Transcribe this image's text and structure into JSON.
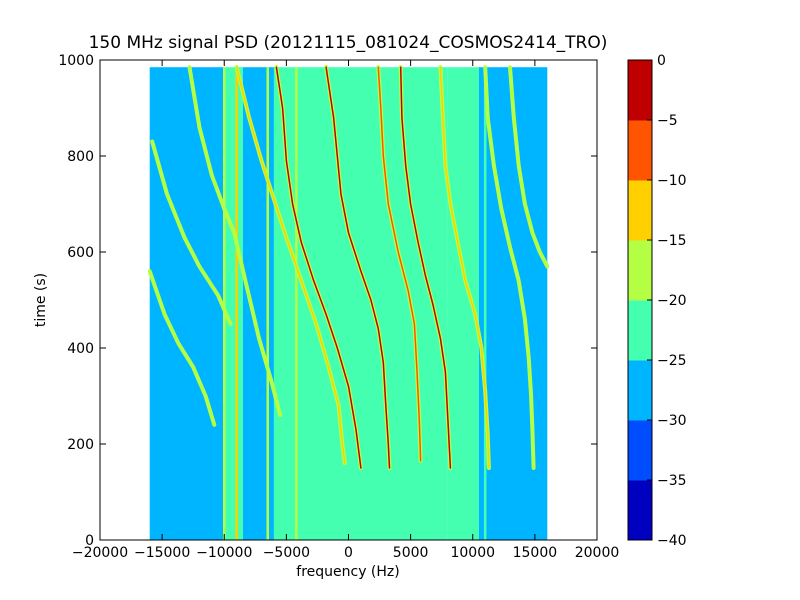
{
  "chart_data": {
    "type": "heatmap",
    "title": "150 MHz signal PSD (20121115_081024_COSMOS2414_TRO)",
    "xlabel": "frequency (Hz)",
    "ylabel": "time (s)",
    "xlim": [
      -20000,
      20000
    ],
    "ylim": [
      0,
      1000
    ],
    "x_ticks": [
      -20000,
      -15000,
      -10000,
      -5000,
      0,
      5000,
      10000,
      15000,
      20000
    ],
    "y_ticks": [
      0,
      200,
      400,
      600,
      800,
      1000
    ],
    "grid": false,
    "data_extent": {
      "x": [
        -16000,
        16000
      ],
      "y": [
        0,
        985
      ]
    },
    "colorbar": {
      "levels": [
        -40,
        -35,
        -30,
        -25,
        -20,
        -15,
        -10,
        -5,
        0
      ],
      "tick_labels": [
        "−40",
        "−35",
        "−30",
        "−25",
        "−20",
        "−15",
        "−10",
        "−5",
        "0"
      ],
      "colors": [
        "#0000c0",
        "#004cff",
        "#00b5ff",
        "#44ffb0",
        "#b4ff44",
        "#ffd000",
        "#ff5500",
        "#c00000"
      ]
    },
    "background_levels": [
      {
        "x": [
          -16000,
          -10000
        ],
        "level": -30
      },
      {
        "x": [
          -10000,
          -8500
        ],
        "level": -25
      },
      {
        "x": [
          -8500,
          -6000
        ],
        "level": -30
      },
      {
        "x": [
          -6000,
          8000
        ],
        "level": -25
      },
      {
        "x": [
          8000,
          10500
        ],
        "level": -25
      },
      {
        "x": [
          10500,
          16000
        ],
        "level": -30
      }
    ],
    "vertical_lines": [
      {
        "x": -10000,
        "level": -20
      },
      {
        "x": -9000,
        "level": -15
      },
      {
        "x": -8800,
        "level": -25
      },
      {
        "x": -6500,
        "level": -20
      },
      {
        "x": -4200,
        "level": -20
      },
      {
        "x": 9500,
        "level": -25
      },
      {
        "x": 11000,
        "level": -25
      }
    ],
    "doppler_tracks": [
      {
        "name": "",
        "level": -20,
        "points": [
          [
            -15800,
            830
          ],
          [
            -14600,
            720
          ],
          [
            -13200,
            630
          ],
          [
            -12000,
            570
          ],
          [
            -10500,
            510
          ],
          [
            -9500,
            450
          ]
        ]
      },
      {
        "name": "",
        "level": -20,
        "points": [
          [
            -16000,
            560
          ],
          [
            -14800,
            470
          ],
          [
            -13700,
            410
          ],
          [
            -12500,
            360
          ],
          [
            -11500,
            300
          ],
          [
            -10800,
            240
          ]
        ]
      },
      {
        "name": "",
        "level": -20,
        "points": [
          [
            -12800,
            985
          ],
          [
            -12000,
            860
          ],
          [
            -11000,
            760
          ],
          [
            -10000,
            690
          ],
          [
            -9200,
            640
          ],
          [
            -8300,
            540
          ],
          [
            -7200,
            420
          ],
          [
            -6200,
            330
          ],
          [
            -5500,
            260
          ]
        ]
      },
      {
        "name": "",
        "level": -15,
        "points": [
          [
            -9000,
            985
          ],
          [
            -8000,
            880
          ],
          [
            -7000,
            790
          ],
          [
            -6000,
            710
          ],
          [
            -5000,
            630
          ],
          [
            -3800,
            540
          ],
          [
            -2600,
            450
          ],
          [
            -1600,
            360
          ],
          [
            -800,
            280
          ],
          [
            -500,
            200
          ],
          [
            -300,
            160
          ]
        ]
      },
      {
        "name": "",
        "level": -5,
        "points": [
          [
            -5800,
            985
          ],
          [
            -5300,
            900
          ],
          [
            -5000,
            790
          ],
          [
            -4500,
            700
          ],
          [
            -3800,
            620
          ],
          [
            -2800,
            540
          ],
          [
            -1800,
            470
          ],
          [
            -900,
            400
          ],
          [
            0,
            320
          ],
          [
            600,
            230
          ],
          [
            1000,
            150
          ]
        ]
      },
      {
        "name": "",
        "level": -5,
        "points": [
          [
            -1800,
            985
          ],
          [
            -1200,
            880
          ],
          [
            -900,
            800
          ],
          [
            -600,
            720
          ],
          [
            0,
            640
          ],
          [
            1000,
            560
          ],
          [
            1800,
            500
          ],
          [
            2400,
            440
          ],
          [
            2800,
            370
          ],
          [
            3000,
            280
          ],
          [
            3200,
            200
          ],
          [
            3300,
            150
          ]
        ]
      },
      {
        "name": "",
        "level": -10,
        "points": [
          [
            2400,
            985
          ],
          [
            2600,
            900
          ],
          [
            2800,
            800
          ],
          [
            3200,
            700
          ],
          [
            4000,
            600
          ],
          [
            4800,
            520
          ],
          [
            5300,
            450
          ],
          [
            5500,
            360
          ],
          [
            5700,
            250
          ],
          [
            5800,
            165
          ]
        ]
      },
      {
        "name": "",
        "level": -5,
        "points": [
          [
            4200,
            985
          ],
          [
            4300,
            880
          ],
          [
            4600,
            780
          ],
          [
            5000,
            700
          ],
          [
            5600,
            620
          ],
          [
            6200,
            550
          ],
          [
            6800,
            490
          ],
          [
            7400,
            420
          ],
          [
            7800,
            350
          ],
          [
            8000,
            250
          ],
          [
            8200,
            150
          ]
        ]
      },
      {
        "name": "",
        "level": -15,
        "points": [
          [
            7400,
            985
          ],
          [
            7600,
            880
          ],
          [
            7800,
            780
          ],
          [
            8200,
            700
          ],
          [
            8800,
            620
          ],
          [
            9400,
            540
          ],
          [
            10200,
            470
          ],
          [
            10700,
            400
          ],
          [
            11000,
            310
          ],
          [
            11200,
            220
          ],
          [
            11300,
            150
          ]
        ]
      },
      {
        "name": "",
        "level": -20,
        "points": [
          [
            11000,
            985
          ],
          [
            11200,
            880
          ],
          [
            11700,
            780
          ],
          [
            12300,
            690
          ],
          [
            13000,
            610
          ],
          [
            13700,
            540
          ],
          [
            14200,
            460
          ],
          [
            14500,
            380
          ],
          [
            14700,
            300
          ],
          [
            14800,
            230
          ],
          [
            14900,
            150
          ]
        ]
      },
      {
        "name": "",
        "level": -20,
        "points": [
          [
            13000,
            985
          ],
          [
            13300,
            880
          ],
          [
            13700,
            780
          ],
          [
            14200,
            700
          ],
          [
            14800,
            640
          ],
          [
            15400,
            600
          ],
          [
            16000,
            570
          ]
        ]
      }
    ]
  }
}
